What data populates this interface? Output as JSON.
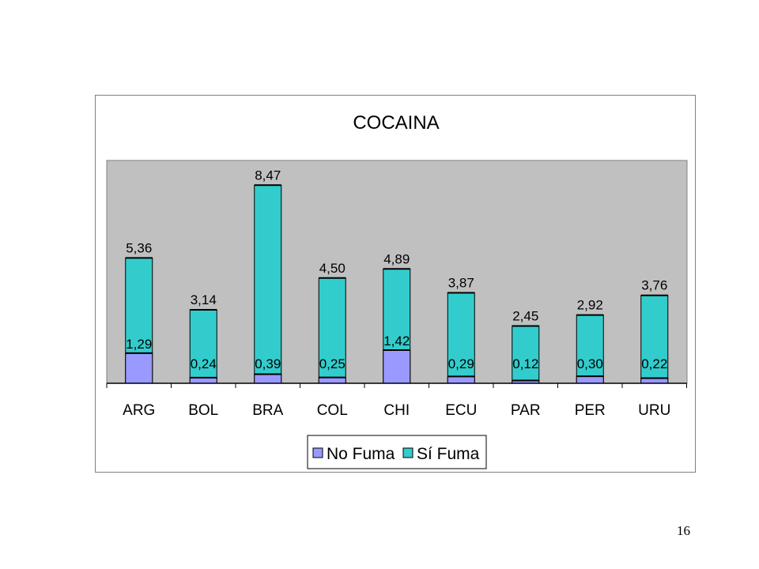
{
  "slide": {
    "page_number": "16"
  },
  "colors": {
    "no_fuma": "#9999ff",
    "si_fuma": "#33cccc",
    "plot_bg": "#c0c0c0",
    "edge": "#000000"
  },
  "chart_data": {
    "type": "bar",
    "stacked": true,
    "title": "COCAINA",
    "categories": [
      "ARG",
      "BOL",
      "BRA",
      "COL",
      "CHI",
      "ECU",
      "PAR",
      "PER",
      "URU"
    ],
    "series": [
      {
        "name": "No Fuma",
        "values": [
          1.29,
          0.24,
          0.39,
          0.25,
          1.42,
          0.29,
          0.12,
          0.3,
          0.22
        ],
        "labels": [
          "1,29",
          "0,24",
          "0,39",
          "0,25",
          "1,42",
          "0,29",
          "0,12",
          "0,30",
          "0,22"
        ]
      },
      {
        "name": "Sí Fuma",
        "values": [
          5.36,
          3.14,
          8.47,
          4.5,
          4.89,
          3.87,
          2.45,
          2.92,
          3.76
        ],
        "labels": [
          "5,36",
          "3,14",
          "8,47",
          "4,50",
          "4,89",
          "3,87",
          "2,45",
          "2,92",
          "3,76"
        ]
      }
    ],
    "ylim": [
      0,
      10
    ],
    "grid": false,
    "legend": "bottom"
  }
}
